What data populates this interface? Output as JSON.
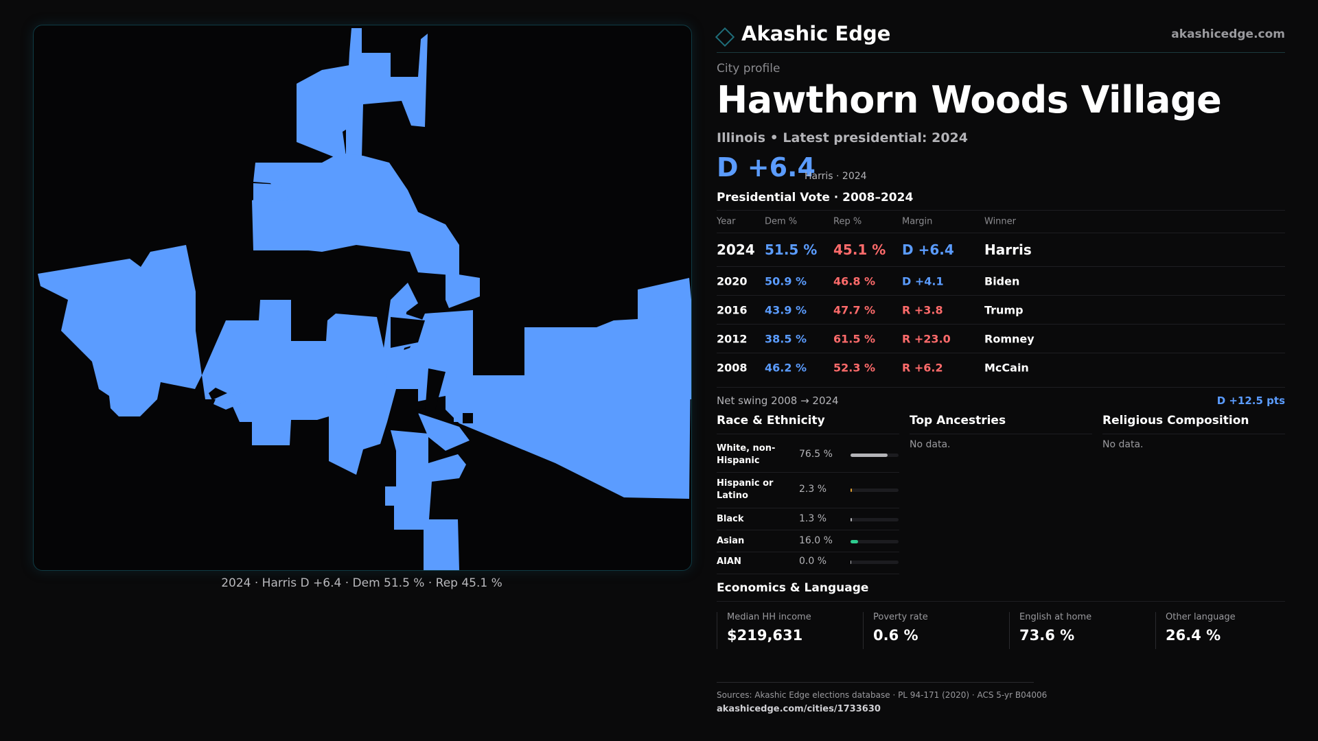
{
  "map": {
    "caption": "2024 · Harris D +6.4 · Dem 51.5 % · Rep 45.1 %",
    "fill_color": "#5b9cff",
    "border_color": "#0f3b44"
  },
  "header": {
    "brand_name": "Akashic Edge",
    "brand_url": "akashicedge.com",
    "eyebrow": "City profile",
    "city_name": "Hawthorn Woods Village",
    "subtitle": "Illinois • Latest presidential: 2024",
    "headline_margin": "D +6.4",
    "headline_note": "Harris · 2024"
  },
  "vote_table": {
    "title": "Presidential Vote · 2008–2024",
    "columns": [
      "Year",
      "Dem %",
      "Rep %",
      "Margin",
      "Winner"
    ],
    "rows": [
      {
        "year": "2024",
        "dem": "51.5 %",
        "rep": "45.1 %",
        "margin": "D +6.4",
        "winner": "Harris",
        "party": "dem"
      },
      {
        "year": "2020",
        "dem": "50.9 %",
        "rep": "46.8 %",
        "margin": "D +4.1",
        "winner": "Biden",
        "party": "dem"
      },
      {
        "year": "2016",
        "dem": "43.9 %",
        "rep": "47.7 %",
        "margin": "R +3.8",
        "winner": "Trump",
        "party": "rep"
      },
      {
        "year": "2012",
        "dem": "38.5 %",
        "rep": "61.5 %",
        "margin": "R +23.0",
        "winner": "Romney",
        "party": "rep"
      },
      {
        "year": "2008",
        "dem": "46.2 %",
        "rep": "52.3 %",
        "margin": "R +6.2",
        "winner": "McCain",
        "party": "rep"
      }
    ],
    "swing_label": "Net swing 2008 → 2024",
    "swing_value": "D +12.5 pts"
  },
  "race": {
    "title": "Race & Ethnicity",
    "rows": [
      {
        "label": "White, non-Hispanic",
        "value": "76.5 %",
        "share": 0.765,
        "color": "#b4b4b8"
      },
      {
        "label": "Hispanic or Latino",
        "value": "2.3 %",
        "share": 0.023,
        "color": "#e0a030"
      },
      {
        "label": "Black",
        "value": "1.3 %",
        "share": 0.013,
        "color": "#b4b4b8"
      },
      {
        "label": "Asian",
        "value": "16.0 %",
        "share": 0.16,
        "color": "#2ecc8f"
      },
      {
        "label": "AIAN",
        "value": "0.0 %",
        "share": 0.0,
        "color": "#b4b4b8"
      }
    ]
  },
  "ancestries": {
    "title": "Top Ancestries",
    "empty": "No data."
  },
  "religion": {
    "title": "Religious Composition",
    "empty": "No data."
  },
  "economics": {
    "title": "Economics & Language",
    "cards": [
      {
        "label": "Median HH income",
        "value": "$219,631"
      },
      {
        "label": "Poverty rate",
        "value": "0.6 %"
      },
      {
        "label": "English at home",
        "value": "73.6 %"
      },
      {
        "label": "Other language",
        "value": "26.4 %"
      }
    ]
  },
  "footer": {
    "sources": "Sources: Akashic Edge elections database · PL 94-171 (2020) · ACS 5-yr B04006",
    "url": "akashicedge.com/cities/1733630"
  }
}
